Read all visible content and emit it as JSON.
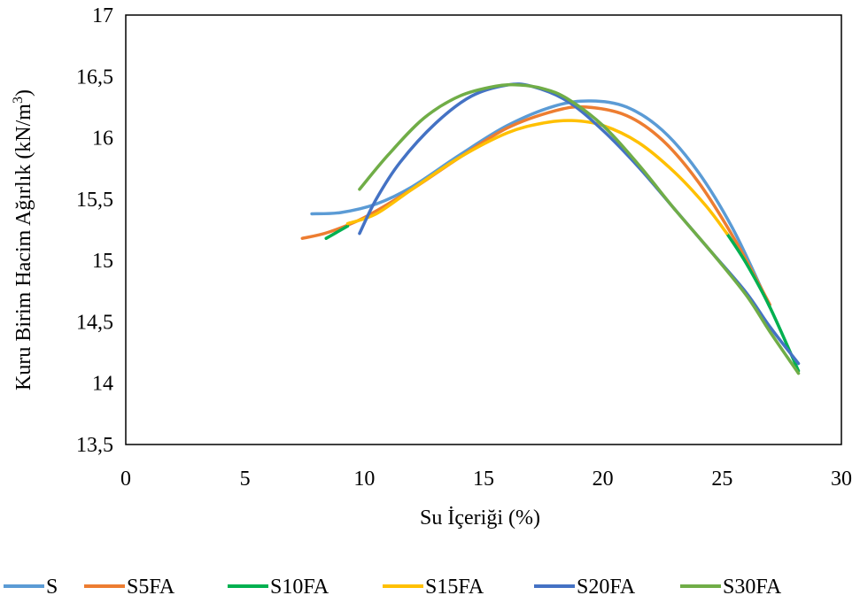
{
  "chart_data": {
    "type": "line",
    "xlabel": "Su İçeriği (%)",
    "ylabel_main": "Kuru Birim Hacim Ağırlık (kN/m",
    "ylabel_sup": "3",
    "ylabel_close": ")",
    "xlim": [
      0,
      30
    ],
    "ylim": [
      13.5,
      17
    ],
    "x_ticks": [
      0,
      5,
      10,
      15,
      20,
      25,
      30
    ],
    "x_tick_labels": [
      "0",
      "5",
      "10",
      "15",
      "20",
      "25",
      "30"
    ],
    "y_ticks": [
      13.5,
      14,
      14.5,
      15,
      15.5,
      16,
      16.5,
      17
    ],
    "y_tick_labels": [
      "13,5",
      "14",
      "14,5",
      "15",
      "15,5",
      "16",
      "16,5",
      "17"
    ],
    "grid": false,
    "legend_position": "bottom",
    "series": [
      {
        "name": "S",
        "color": "#5B9BD5",
        "x": [
          7.8,
          9,
          10.5,
          12,
          14,
          16,
          18,
          19.5,
          21,
          22.5,
          24,
          25.5,
          27
        ],
        "y": [
          15.38,
          15.39,
          15.46,
          15.6,
          15.86,
          16.1,
          16.26,
          16.3,
          16.25,
          16.06,
          15.72,
          15.24,
          14.62
        ]
      },
      {
        "name": "S5FA",
        "color": "#ED7D31",
        "x": [
          7.4,
          8.5,
          10,
          12,
          14,
          16,
          18,
          19.3,
          21,
          22.5,
          24,
          25.5,
          27
        ],
        "y": [
          15.18,
          15.23,
          15.35,
          15.58,
          15.84,
          16.08,
          16.22,
          16.25,
          16.18,
          15.98,
          15.64,
          15.18,
          14.64
        ]
      },
      {
        "name": "S10FA",
        "color": "#00B050",
        "x": [
          8.4,
          9.3
        ],
        "y": [
          15.18,
          15.28
        ],
        "x2": [
          25.2,
          26,
          27,
          28.2
        ],
        "y2": [
          15.22,
          14.98,
          14.62,
          14.1
        ]
      },
      {
        "name": "S15FA",
        "color": "#FFC000",
        "x": [
          9.3,
          10.5,
          12,
          14,
          16,
          17.5,
          18.7,
          20,
          21.5,
          23,
          24.3,
          25.2
        ],
        "y": [
          15.3,
          15.38,
          15.58,
          15.84,
          16.04,
          16.12,
          16.14,
          16.1,
          15.96,
          15.72,
          15.45,
          15.22
        ]
      },
      {
        "name": "S20FA",
        "color": "#4472C4",
        "x": [
          9.8,
          10.5,
          11.5,
          13,
          14.5,
          16,
          17,
          18.5,
          20,
          21.5,
          23,
          24.5,
          26,
          27,
          28.2
        ],
        "y": [
          15.22,
          15.5,
          15.8,
          16.12,
          16.34,
          16.43,
          16.42,
          16.3,
          16.06,
          15.76,
          15.42,
          15.08,
          14.74,
          14.46,
          14.16
        ]
      },
      {
        "name": "S30FA",
        "color": "#70AD47",
        "x": [
          9.8,
          11,
          12.5,
          14,
          15.5,
          16.5,
          17.5,
          18.5,
          20,
          21.5,
          23,
          24.5,
          26,
          27,
          28.2
        ],
        "y": [
          15.58,
          15.86,
          16.16,
          16.34,
          16.42,
          16.43,
          16.4,
          16.32,
          16.1,
          15.78,
          15.42,
          15.08,
          14.72,
          14.42,
          14.08
        ]
      }
    ]
  }
}
